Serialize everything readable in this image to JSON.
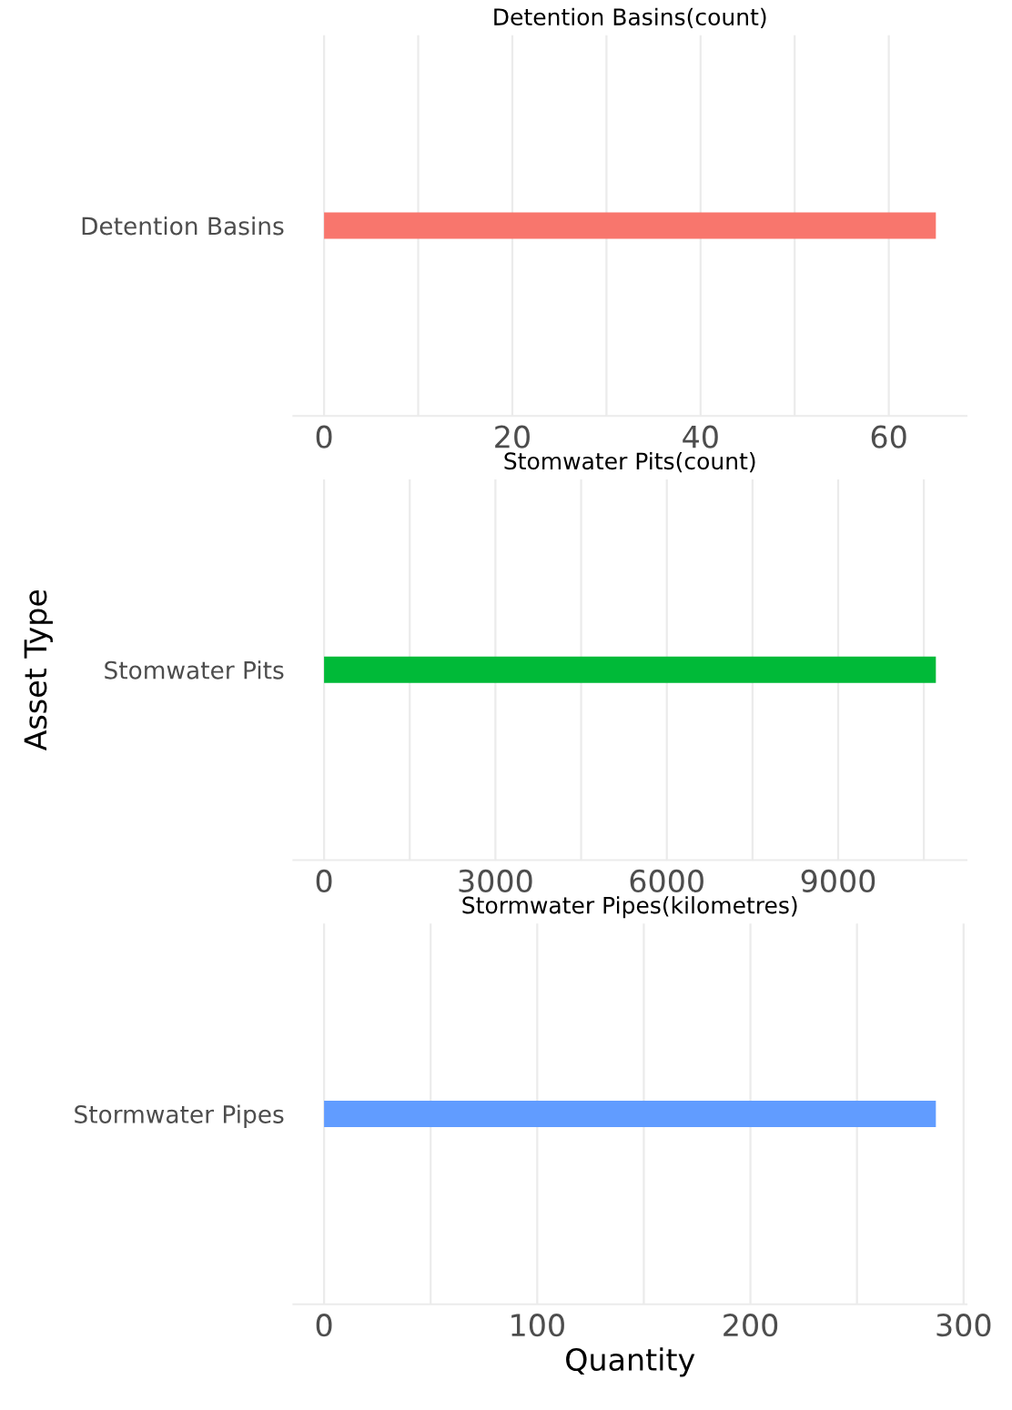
{
  "chart_data": [
    {
      "type": "bar",
      "orientation": "horizontal",
      "title": "Detention Basins(count)",
      "categories": [
        "Detention Basins"
      ],
      "values": [
        65
      ],
      "color": "#f8766d",
      "xlim": [
        -3.25,
        68.25
      ],
      "xticks": [
        0,
        {
          "value": 10,
          "label": null
        },
        20,
        {
          "value": 30,
          "label": null
        },
        40,
        {
          "value": 50,
          "label": null
        },
        60
      ],
      "grid": "x",
      "legend": false
    },
    {
      "type": "bar",
      "orientation": "horizontal",
      "title": "Stomwater Pits(count)",
      "ylabel": "Asset Type",
      "categories": [
        "Stomwater Pits"
      ],
      "values": [
        10710
      ],
      "color": "#00ba38",
      "xlim": [
        -535.5,
        11245.5
      ],
      "xticks": [
        0,
        {
          "value": 1500,
          "label": null
        },
        3000,
        {
          "value": 4500,
          "label": null
        },
        6000,
        {
          "value": 7500,
          "label": null
        },
        9000,
        {
          "value": 10500,
          "label": null
        }
      ],
      "grid": "x",
      "legend": false
    },
    {
      "type": "bar",
      "orientation": "horizontal",
      "title": "Stormwater Pipes(kilometres)",
      "xlabel": "Quantity",
      "categories": [
        "Stormwater Pipes"
      ],
      "values": [
        287
      ],
      "color": "#619cff",
      "xlim": [
        -14.35,
        301.35
      ],
      "xticks": [
        0,
        {
          "value": 50,
          "label": null
        },
        100,
        {
          "value": 150,
          "label": null
        },
        200,
        {
          "value": 250,
          "label": null
        },
        300
      ],
      "grid": "x",
      "legend": false
    }
  ]
}
